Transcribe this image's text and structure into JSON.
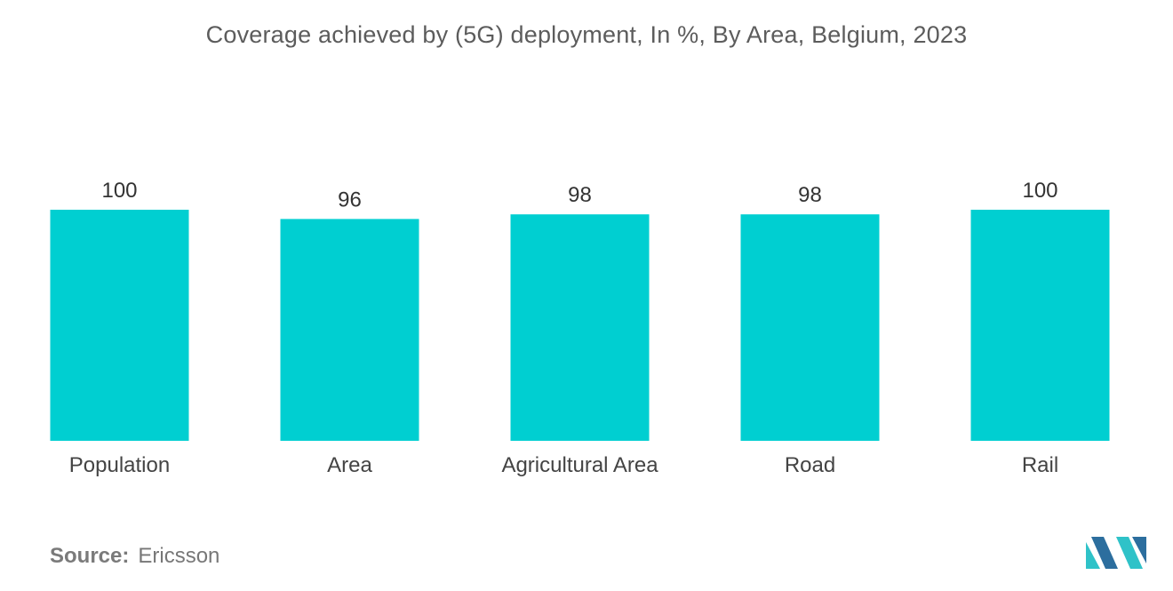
{
  "colors": {
    "bar": "#00cfd1",
    "logo_dark": "#2c6e9e",
    "logo_light": "#2fc2c8"
  },
  "source": {
    "label": "Source:",
    "value": "Ericsson"
  },
  "logo": {
    "icon": "mordor-intelligence-logo-icon"
  },
  "chart_data": {
    "type": "bar",
    "title": "Coverage achieved by (5G) deployment, In %, By Area, Belgium, 2023",
    "xlabel": "",
    "ylabel": "",
    "categories": [
      "Population",
      "Area",
      "Agricultural Area",
      "Road",
      "Rail"
    ],
    "values": [
      100,
      96,
      98,
      98,
      100
    ],
    "value_labels": [
      "100",
      "96",
      "98",
      "98",
      "100"
    ],
    "ylim": [
      0,
      100
    ],
    "grid": false,
    "legend": "none"
  }
}
